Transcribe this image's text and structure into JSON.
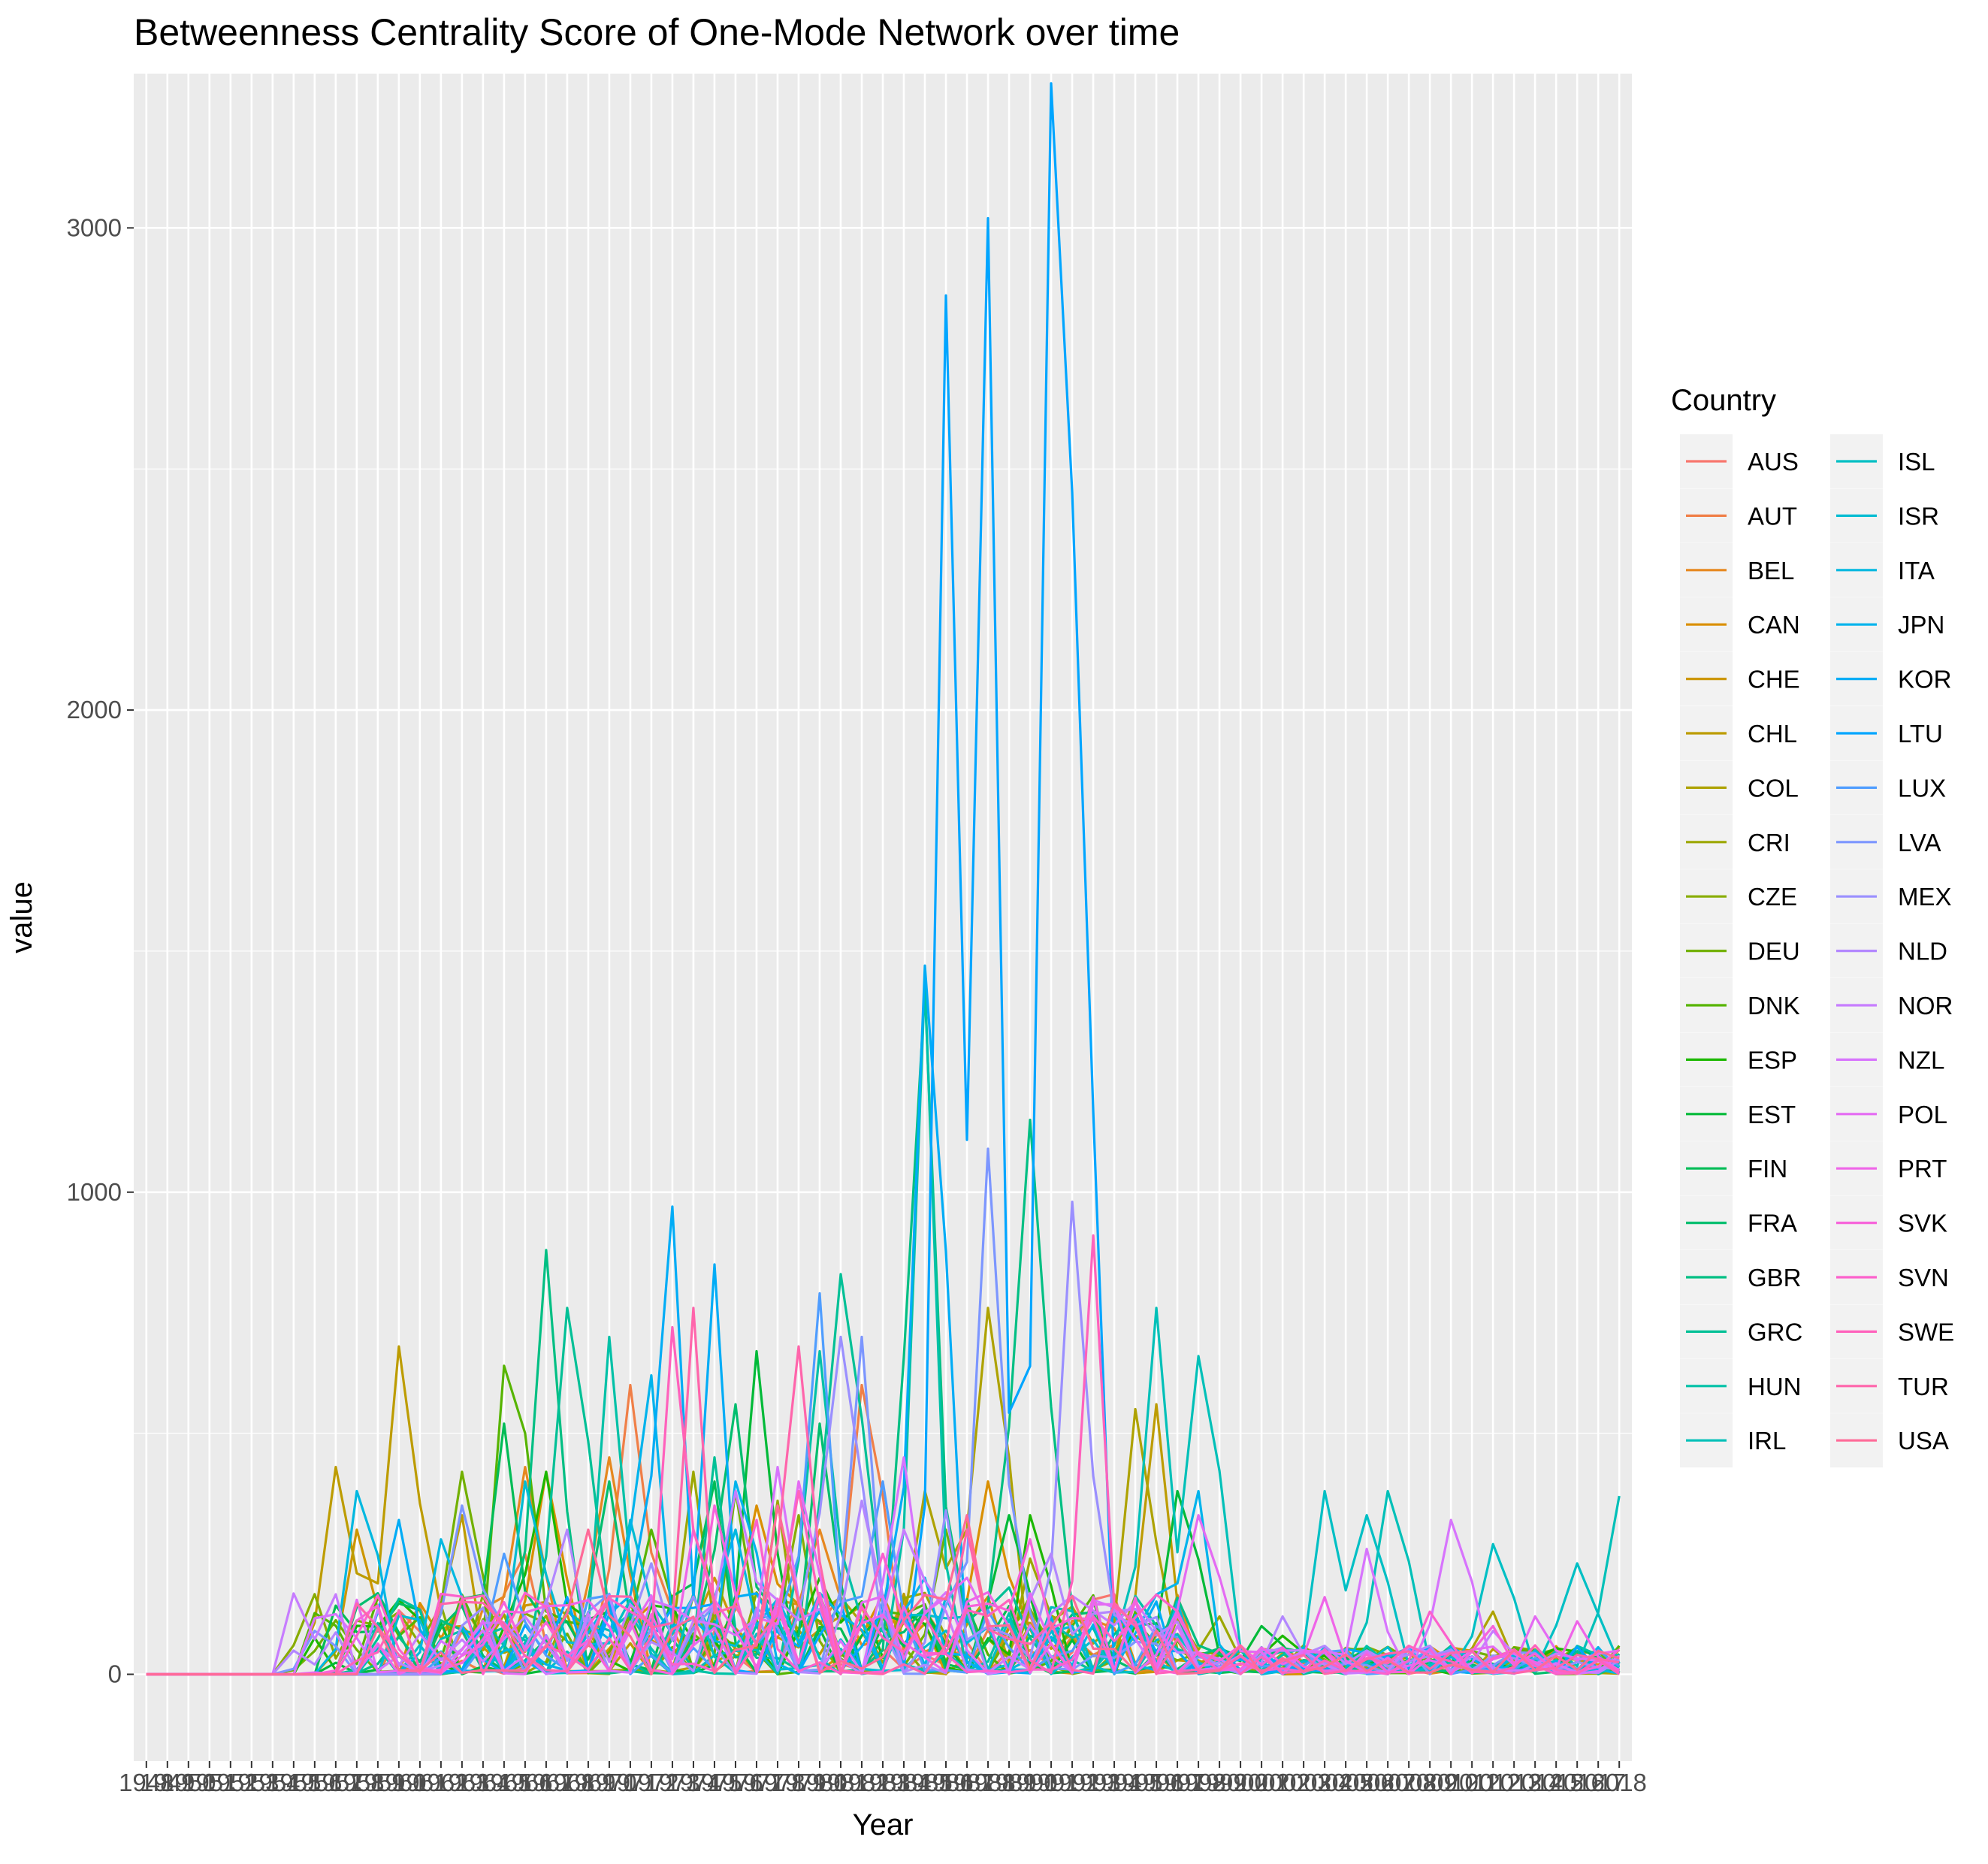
{
  "chart_data": {
    "type": "line",
    "title": "Betweenness Centrality Score of One-Mode Network over time",
    "xlabel": "Year",
    "ylabel": "value",
    "x_start": 1948,
    "x_end": 2018,
    "ylim": [
      -180,
      3320
    ],
    "yticks": [
      0,
      1000,
      2000,
      3000
    ],
    "grid": true,
    "legend": {
      "title": "Country",
      "position": "right",
      "columns": 2
    },
    "series": [
      {
        "name": "AUS",
        "color": "#F8766D",
        "peaks": [
          [
            1969,
            60
          ],
          [
            1985,
            40
          ],
          [
            1996,
            30
          ],
          [
            2010,
            20
          ]
        ]
      },
      {
        "name": "AUT",
        "color": "#F07F47",
        "peaks": [
          [
            1971,
            600
          ],
          [
            1966,
            250
          ],
          [
            1982,
            600
          ],
          [
            1990,
            50
          ]
        ]
      },
      {
        "name": "BEL",
        "color": "#E6881F",
        "peaks": [
          [
            1970,
            450
          ],
          [
            1966,
            430
          ],
          [
            1980,
            300
          ],
          [
            1984,
            150
          ]
        ]
      },
      {
        "name": "CAN",
        "color": "#DA8F00",
        "peaks": [
          [
            1967,
            420
          ],
          [
            1977,
            350
          ],
          [
            1988,
            400
          ],
          [
            1996,
            80
          ]
        ]
      },
      {
        "name": "CHE",
        "color": "#CC9600",
        "peaks": [
          [
            1958,
            300
          ],
          [
            1963,
            100
          ],
          [
            1975,
            200
          ],
          [
            2005,
            50
          ]
        ]
      },
      {
        "name": "CHL",
        "color": "#BD9C00",
        "peaks": [
          [
            1960,
            680
          ],
          [
            1957,
            430
          ],
          [
            1963,
            330
          ],
          [
            1996,
            560
          ]
        ]
      },
      {
        "name": "COL",
        "color": "#AEA200",
        "peaks": [
          [
            1985,
            380
          ],
          [
            1988,
            760
          ],
          [
            1995,
            550
          ],
          [
            2012,
            130
          ]
        ]
      },
      {
        "name": "CRI",
        "color": "#9CA700",
        "peaks": [
          [
            1974,
            420
          ],
          [
            1978,
            360
          ],
          [
            1990,
            240
          ],
          [
            1999,
            120
          ]
        ]
      },
      {
        "name": "CZE",
        "color": "#88AC00",
        "peaks": [
          [
            1979,
            330
          ],
          [
            1995,
            80
          ],
          [
            2003,
            60
          ],
          [
            2015,
            30
          ]
        ]
      },
      {
        "name": "DEU",
        "color": "#72B000",
        "peaks": [
          [
            1963,
            420
          ],
          [
            1976,
            380
          ],
          [
            1986,
            300
          ],
          [
            2008,
            30
          ]
        ]
      },
      {
        "name": "DNK",
        "color": "#56B400",
        "peaks": [
          [
            1965,
            640
          ],
          [
            1966,
            500
          ],
          [
            1972,
            300
          ],
          [
            1992,
            100
          ]
        ]
      },
      {
        "name": "ESP",
        "color": "#1CB800",
        "peaks": [
          [
            1967,
            420
          ],
          [
            1980,
            200
          ],
          [
            1990,
            330
          ],
          [
            2002,
            80
          ]
        ]
      },
      {
        "name": "EST",
        "color": "#00BA38",
        "peaks": [
          [
            1977,
            670
          ],
          [
            1989,
            330
          ],
          [
            1997,
            380
          ],
          [
            2001,
            100
          ]
        ]
      },
      {
        "name": "FIN",
        "color": "#00BC56",
        "peaks": [
          [
            1965,
            520
          ],
          [
            1975,
            400
          ],
          [
            1983,
            100
          ],
          [
            2004,
            50
          ]
        ]
      },
      {
        "name": "FRA",
        "color": "#00BE6E",
        "peaks": [
          [
            1970,
            400
          ],
          [
            1976,
            560
          ],
          [
            1980,
            520
          ],
          [
            1994,
            30
          ]
        ]
      },
      {
        "name": "GBR",
        "color": "#00BF83",
        "peaks": [
          [
            1967,
            880
          ],
          [
            1985,
            1420
          ],
          [
            1990,
            1150
          ],
          [
            1998,
            60
          ]
        ]
      },
      {
        "name": "GRC",
        "color": "#00C096",
        "peaks": [
          [
            1968,
            760
          ],
          [
            1975,
            450
          ],
          [
            1981,
            830
          ],
          [
            1989,
            180
          ]
        ]
      },
      {
        "name": "HUN",
        "color": "#00C1A7",
        "peaks": [
          [
            1970,
            700
          ],
          [
            1980,
            670
          ],
          [
            1985,
            1440
          ],
          [
            2002,
            40
          ]
        ]
      },
      {
        "name": "IRL",
        "color": "#00C0B8",
        "peaks": [
          [
            1996,
            760
          ],
          [
            1998,
            660
          ],
          [
            2007,
            380
          ],
          [
            2018,
            370
          ]
        ]
      },
      {
        "name": "ISL",
        "color": "#00BFC4",
        "peaks": [
          [
            2004,
            380
          ],
          [
            2006,
            330
          ],
          [
            2012,
            270
          ],
          [
            2016,
            230
          ]
        ]
      },
      {
        "name": "ISR",
        "color": "#00BCD2",
        "peaks": [
          [
            1966,
            400
          ],
          [
            1971,
            320
          ],
          [
            1989,
            20
          ],
          [
            2004,
            20
          ]
        ]
      },
      {
        "name": "ITA",
        "color": "#00B8E0",
        "peaks": [
          [
            1958,
            380
          ],
          [
            1962,
            280
          ],
          [
            1976,
            300
          ],
          [
            2000,
            30
          ]
        ]
      },
      {
        "name": "JPN",
        "color": "#00B3EC",
        "peaks": [
          [
            1972,
            620
          ],
          [
            1976,
            400
          ],
          [
            1985,
            200
          ],
          [
            1998,
            380
          ]
        ]
      },
      {
        "name": "KOR",
        "color": "#00ACF6",
        "peaks": [
          [
            1960,
            320
          ],
          [
            1973,
            970
          ],
          [
            1975,
            850
          ],
          [
            1985,
            1470
          ]
        ]
      },
      {
        "name": "LTU",
        "color": "#00A5FF",
        "peaks": [
          [
            1986,
            2860
          ],
          [
            1988,
            3020
          ],
          [
            1991,
            3300
          ],
          [
            1992,
            2450
          ]
        ]
      },
      {
        "name": "LUX",
        "color": "#4F9DFF",
        "peaks": [
          [
            1965,
            250
          ],
          [
            1980,
            790
          ],
          [
            1983,
            400
          ],
          [
            1996,
            100
          ]
        ]
      },
      {
        "name": "LVA",
        "color": "#7C96FF",
        "peaks": [
          [
            1956,
            90
          ],
          [
            1963,
            350
          ],
          [
            1982,
            700
          ],
          [
            1988,
            1090
          ]
        ]
      },
      {
        "name": "MEX",
        "color": "#9A8FFF",
        "peaks": [
          [
            1972,
            230
          ],
          [
            1981,
            700
          ],
          [
            1986,
            340
          ],
          [
            1992,
            980
          ]
        ]
      },
      {
        "name": "NLD",
        "color": "#B387FF",
        "peaks": [
          [
            1968,
            300
          ],
          [
            1982,
            360
          ],
          [
            1991,
            250
          ],
          [
            2002,
            120
          ]
        ]
      },
      {
        "name": "NOR",
        "color": "#C77DFF",
        "peaks": [
          [
            1976,
            380
          ],
          [
            1984,
            300
          ],
          [
            1995,
            150
          ],
          [
            2012,
            90
          ]
        ]
      },
      {
        "name": "NZL",
        "color": "#D774FD",
        "peaks": [
          [
            1978,
            430
          ],
          [
            1984,
            450
          ],
          [
            2006,
            260
          ],
          [
            2010,
            320
          ]
        ]
      },
      {
        "name": "POL",
        "color": "#E46BF3",
        "peaks": [
          [
            1979,
            400
          ],
          [
            1987,
            200
          ],
          [
            1998,
            330
          ],
          [
            2014,
            120
          ]
        ]
      },
      {
        "name": "PRT",
        "color": "#EF65E8",
        "peaks": [
          [
            1974,
            300
          ],
          [
            1988,
            170
          ],
          [
            2004,
            160
          ],
          [
            2016,
            110
          ]
        ]
      },
      {
        "name": "SVK",
        "color": "#F763DA",
        "peaks": [
          [
            1975,
            350
          ],
          [
            1990,
            280
          ],
          [
            2000,
            60
          ],
          [
            2012,
            100
          ]
        ]
      },
      {
        "name": "SVN",
        "color": "#FC61CC",
        "peaks": [
          [
            1977,
            320
          ],
          [
            1983,
            250
          ],
          [
            1993,
            120
          ],
          [
            2009,
            130
          ]
        ]
      },
      {
        "name": "SWE",
        "color": "#FF62BC",
        "peaks": [
          [
            1973,
            720
          ],
          [
            1979,
            380
          ],
          [
            1993,
            910
          ],
          [
            2014,
            60
          ]
        ]
      },
      {
        "name": "TUR",
        "color": "#FF65AB",
        "peaks": [
          [
            1974,
            760
          ],
          [
            1979,
            680
          ],
          [
            1987,
            300
          ],
          [
            2016,
            40
          ]
        ]
      },
      {
        "name": "USA",
        "color": "#FF6A98",
        "peaks": [
          [
            1969,
            300
          ],
          [
            1978,
            350
          ],
          [
            1987,
            330
          ],
          [
            2010,
            20
          ]
        ]
      }
    ]
  }
}
